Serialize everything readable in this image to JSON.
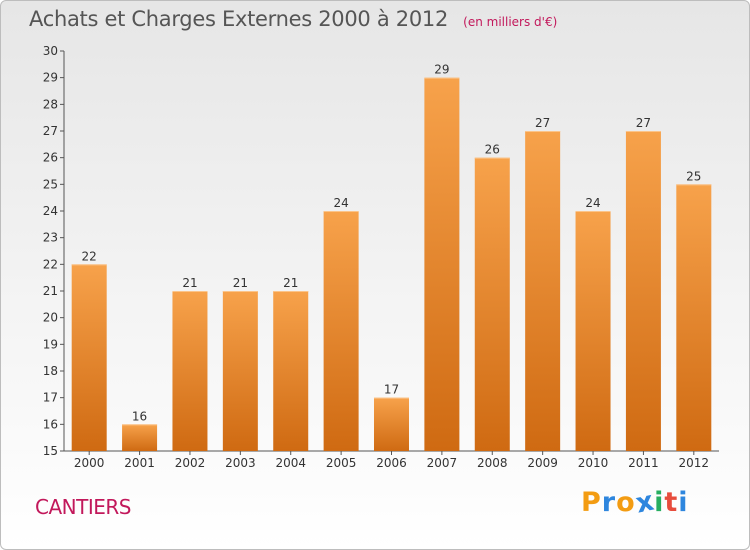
{
  "header": {
    "title": "Achats et Charges Externes 2000 à 2012",
    "subtitle": "(en milliers d'€)"
  },
  "commune": "CANTIERS",
  "logo": {
    "text": "Proxiti",
    "letters": [
      "P",
      "r",
      "o",
      "x",
      "i",
      "t",
      "i"
    ],
    "colors": [
      "#f39c12",
      "#2e86de",
      "#f39c12",
      "#2e86de",
      "#27ae60",
      "#e74c3c",
      "#2e86de"
    ]
  },
  "colors": {
    "bar_top": "#f7a24b",
    "bar_bottom": "#cf6a12",
    "title": "#555555",
    "accent": "#c2185b"
  },
  "chart_data": {
    "type": "bar",
    "title": "Achats et Charges Externes 2000 à 2012",
    "subtitle": "(en milliers d'€)",
    "categories": [
      "2000",
      "2001",
      "2002",
      "2003",
      "2004",
      "2005",
      "2006",
      "2007",
      "2008",
      "2009",
      "2010",
      "2011",
      "2012"
    ],
    "values": [
      22,
      16,
      21,
      21,
      21,
      24,
      17,
      29,
      26,
      27,
      24,
      27,
      25
    ],
    "ylim": [
      15,
      30
    ],
    "yticks": [
      15,
      16,
      17,
      18,
      19,
      20,
      21,
      22,
      23,
      24,
      25,
      26,
      27,
      28,
      29,
      30
    ],
    "xlabel": "",
    "ylabel": "",
    "grid": false,
    "data_labels": true
  }
}
